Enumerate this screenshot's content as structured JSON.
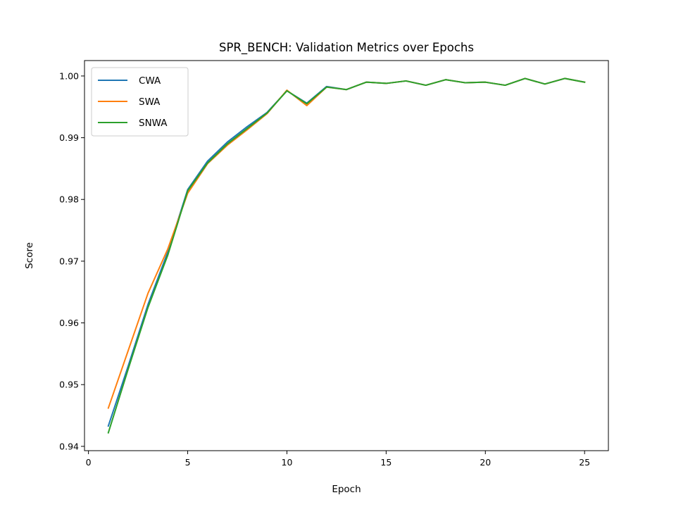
{
  "chart_data": {
    "type": "line",
    "title": "SPR_BENCH: Validation Metrics over Epochs",
    "xlabel": "Epoch",
    "ylabel": "Score",
    "xlim": [
      -0.2,
      26.2
    ],
    "ylim": [
      0.9393,
      1.0025
    ],
    "xticks": [
      0,
      5,
      10,
      15,
      20,
      25
    ],
    "xtick_labels": [
      "0",
      "5",
      "10",
      "15",
      "20",
      "25"
    ],
    "yticks": [
      0.94,
      0.95,
      0.96,
      0.97,
      0.98,
      0.99,
      1.0
    ],
    "ytick_labels": [
      "0.94",
      "0.95",
      "0.96",
      "0.97",
      "0.98",
      "0.99",
      "1.00"
    ],
    "grid": false,
    "legend_position": "top-left",
    "x": [
      1,
      2,
      3,
      4,
      5,
      6,
      7,
      8,
      9,
      10,
      11,
      12,
      13,
      14,
      15,
      16,
      17,
      18,
      19,
      20,
      21,
      22,
      23,
      24,
      25
    ],
    "series": [
      {
        "name": "CWA",
        "color": "#1f77b4",
        "values": [
          0.9433,
          0.953,
          0.963,
          0.9715,
          0.9816,
          0.9862,
          0.9893,
          0.9918,
          0.9941,
          0.9976,
          0.9956,
          0.9983,
          0.9978,
          0.999,
          0.9988,
          0.9992,
          0.9985,
          0.9994,
          0.9989,
          0.999,
          0.9985,
          0.9996,
          0.9987,
          0.9996,
          0.999
        ]
      },
      {
        "name": "SWA",
        "color": "#ff7f0e",
        "values": [
          0.9462,
          0.9555,
          0.9648,
          0.972,
          0.981,
          0.9858,
          0.9888,
          0.9913,
          0.9939,
          0.9977,
          0.9952,
          0.9982,
          0.9978,
          0.999,
          0.9988,
          0.9992,
          0.9985,
          0.9994,
          0.9989,
          0.999,
          0.9985,
          0.9996,
          0.9987,
          0.9996,
          0.999
        ]
      },
      {
        "name": "SNWA",
        "color": "#2ca02c",
        "values": [
          0.9422,
          0.9525,
          0.9625,
          0.971,
          0.9814,
          0.9859,
          0.989,
          0.9915,
          0.994,
          0.9976,
          0.9955,
          0.9982,
          0.9978,
          0.999,
          0.9988,
          0.9992,
          0.9985,
          0.9994,
          0.9989,
          0.999,
          0.9985,
          0.9996,
          0.9987,
          0.9996,
          0.999
        ]
      }
    ]
  }
}
